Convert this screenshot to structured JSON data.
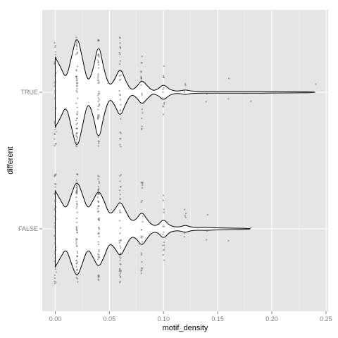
{
  "chart_data": {
    "type": "violin",
    "xlabel": "motif_density",
    "ylabel": "different",
    "xlim": [
      -0.012,
      0.252
    ],
    "x_ticks": [
      0.0,
      0.05,
      0.1,
      0.15,
      0.2,
      0.25
    ],
    "x_tick_labels": [
      "0.00",
      "0.05",
      "0.10",
      "0.15",
      "0.20",
      "0.25"
    ],
    "categories": [
      "TRUE",
      "FALSE"
    ],
    "grid": true,
    "background": "#e5e5e5",
    "gridline_color": "#ffffff",
    "series": [
      {
        "name": "TRUE",
        "density_x": [
          0.0,
          0.005,
          0.01,
          0.015,
          0.02,
          0.025,
          0.03,
          0.035,
          0.04,
          0.045,
          0.05,
          0.055,
          0.06,
          0.065,
          0.07,
          0.075,
          0.08,
          0.085,
          0.09,
          0.095,
          0.1,
          0.105,
          0.11,
          0.115,
          0.12,
          0.125,
          0.13,
          0.14,
          0.16,
          0.18,
          0.2,
          0.22,
          0.24
        ],
        "density_width": [
          0.55,
          0.4,
          0.2,
          0.55,
          0.92,
          0.55,
          0.14,
          0.35,
          0.8,
          0.35,
          0.09,
          0.2,
          0.4,
          0.18,
          0.03,
          0.08,
          0.2,
          0.1,
          0.02,
          0.05,
          0.13,
          0.05,
          0.02,
          0.02,
          0.04,
          0.02,
          0.015,
          0.015,
          0.015,
          0.015,
          0.012,
          0.01,
          0.008
        ],
        "points": [
          {
            "x": 0.0,
            "n": 40
          },
          {
            "x": 0.02,
            "n": 55
          },
          {
            "x": 0.04,
            "n": 45
          },
          {
            "x": 0.06,
            "n": 30
          },
          {
            "x": 0.08,
            "n": 20
          },
          {
            "x": 0.1,
            "n": 12
          },
          {
            "x": 0.12,
            "n": 4
          },
          {
            "x": 0.14,
            "n": 2
          },
          {
            "x": 0.16,
            "n": 2
          },
          {
            "x": 0.18,
            "n": 1
          },
          {
            "x": 0.24,
            "n": 1
          }
        ]
      },
      {
        "name": "FALSE",
        "density_x": [
          0.0,
          0.005,
          0.01,
          0.015,
          0.02,
          0.025,
          0.03,
          0.035,
          0.04,
          0.045,
          0.05,
          0.055,
          0.06,
          0.065,
          0.07,
          0.075,
          0.08,
          0.085,
          0.09,
          0.095,
          0.1,
          0.105,
          0.11,
          0.115,
          0.12,
          0.125,
          0.13,
          0.14,
          0.15,
          0.16,
          0.17,
          0.18
        ],
        "density_width": [
          0.6,
          0.45,
          0.3,
          0.55,
          0.78,
          0.55,
          0.3,
          0.45,
          0.62,
          0.45,
          0.22,
          0.3,
          0.45,
          0.28,
          0.12,
          0.15,
          0.28,
          0.14,
          0.05,
          0.06,
          0.16,
          0.06,
          0.03,
          0.03,
          0.06,
          0.03,
          0.02,
          0.025,
          0.015,
          0.012,
          0.01,
          0.008
        ],
        "points": [
          {
            "x": 0.0,
            "n": 45
          },
          {
            "x": 0.02,
            "n": 60
          },
          {
            "x": 0.04,
            "n": 55
          },
          {
            "x": 0.06,
            "n": 40
          },
          {
            "x": 0.08,
            "n": 25
          },
          {
            "x": 0.1,
            "n": 15
          },
          {
            "x": 0.12,
            "n": 6
          },
          {
            "x": 0.14,
            "n": 3
          },
          {
            "x": 0.16,
            "n": 1
          },
          {
            "x": 0.18,
            "n": 1
          }
        ]
      }
    ]
  }
}
